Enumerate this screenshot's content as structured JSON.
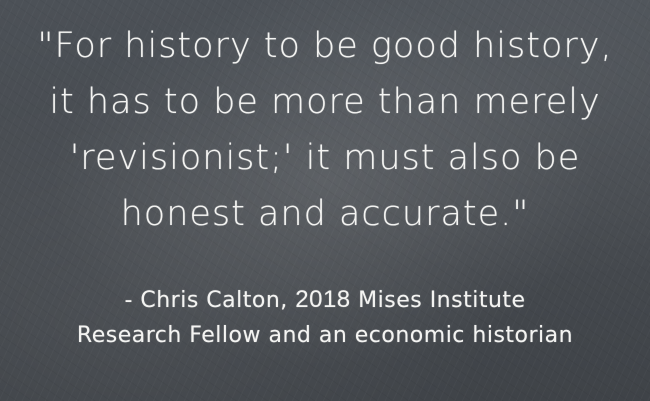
{
  "quote": {
    "lines": [
      "\"For history to be good history,",
      "it has to be more than merely",
      "'revisionist;' it must also be",
      "honest and accurate.\""
    ]
  },
  "attribution": {
    "line1_prefix": "- Chris Calton, ",
    "line1_year": "2018",
    "line1_suffix": " Mises Institute",
    "line2": "Research Fellow and an economic historian"
  }
}
